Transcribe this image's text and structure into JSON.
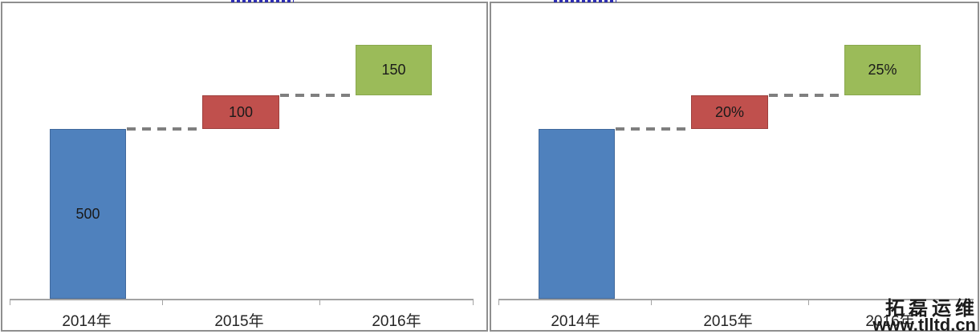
{
  "watermark": {
    "line1": "拓磊运维",
    "line2": "www.tlltd.cn"
  },
  "colors": {
    "bar_blue": "#4f81bd",
    "bar_red": "#c0504d",
    "bar_green": "#9bbb59",
    "connector_gray": "#7f7f7f",
    "axis_gray": "#a3a3a3",
    "panel_border": "#8f8f8f",
    "title_dots_blue": "#2b2bb0"
  },
  "charts": [
    {
      "categories": [
        "2014年",
        "2015年",
        "2016年"
      ],
      "bars": [
        {
          "label": "500",
          "color": "#4f81bd"
        },
        {
          "label": "100",
          "color": "#c0504d"
        },
        {
          "label": "150",
          "color": "#9bbb59"
        }
      ]
    },
    {
      "categories": [
        "2014年",
        "2015年",
        "2016年"
      ],
      "bars": [
        {
          "label": "",
          "color": "#4f81bd"
        },
        {
          "label": "20%",
          "color": "#c0504d"
        },
        {
          "label": "25%",
          "color": "#9bbb59"
        }
      ]
    }
  ],
  "chart_data": [
    {
      "type": "bar",
      "subtype": "waterfall",
      "title": "",
      "xlabel": "",
      "ylabel": "",
      "categories": [
        "2014年",
        "2015年",
        "2016年"
      ],
      "values": [
        500,
        100,
        150
      ],
      "cumulative_levels": [
        500,
        600,
        750
      ],
      "data_labels": [
        "500",
        "100",
        "150"
      ],
      "bar_colors": [
        "#4f81bd",
        "#c0504d",
        "#9bbb59"
      ],
      "connector_style": "dashed",
      "ylim": [
        0,
        870
      ],
      "grid": false,
      "legend": false,
      "y_axis_visible": false
    },
    {
      "type": "bar",
      "subtype": "waterfall",
      "title": "",
      "xlabel": "",
      "ylabel": "",
      "categories": [
        "2014年",
        "2015年",
        "2016年"
      ],
      "values": [
        null,
        20,
        25
      ],
      "data_labels": [
        "",
        "20%",
        "25%"
      ],
      "bar_colors": [
        "#4f81bd",
        "#c0504d",
        "#9bbb59"
      ],
      "connector_style": "dashed",
      "grid": false,
      "legend": false,
      "y_axis_visible": false
    }
  ]
}
